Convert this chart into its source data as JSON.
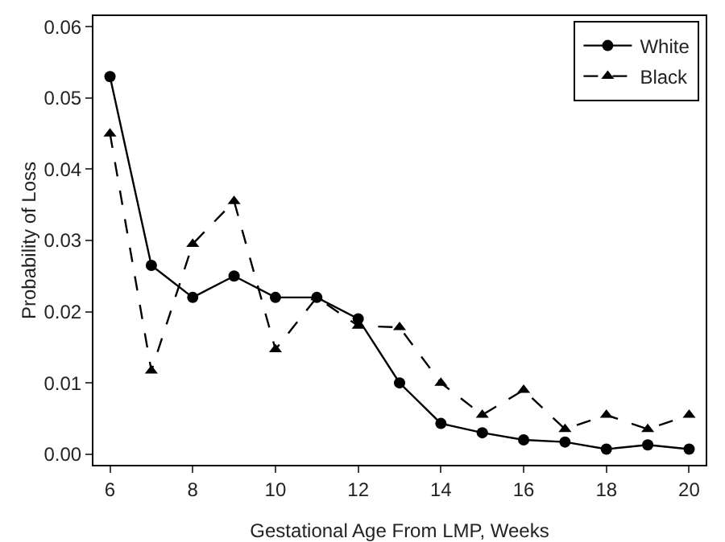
{
  "chart_data": {
    "type": "line",
    "xlabel": "Gestational Age From LMP, Weeks",
    "ylabel": "Probability of Loss",
    "x": [
      6,
      7,
      8,
      9,
      10,
      11,
      12,
      13,
      14,
      15,
      16,
      17,
      18,
      19,
      20
    ],
    "series": [
      {
        "name": "White",
        "color": "#000000",
        "marker": "circle",
        "line_style": "solid",
        "values": [
          0.053,
          0.0265,
          0.022,
          0.025,
          0.022,
          0.022,
          0.019,
          0.01,
          0.0043,
          0.003,
          0.002,
          0.0017,
          0.0007,
          0.0013,
          0.0007
        ]
      },
      {
        "name": "Black",
        "color": "#000000",
        "marker": "triangle",
        "line_style": "dashed",
        "values": [
          0.045,
          0.0117,
          0.0295,
          0.0355,
          0.0147,
          0.022,
          0.018,
          0.0178,
          0.01,
          0.0055,
          0.009,
          0.0035,
          0.0055,
          0.0035,
          0.0055
        ]
      }
    ],
    "xlim": [
      5.6,
      20.4
    ],
    "xticks": [
      6,
      8,
      10,
      12,
      14,
      16,
      18,
      20
    ],
    "ylim": [
      -0.0015,
      0.0615
    ],
    "yticks": [
      {
        "value": 0,
        "label": "0.00"
      },
      {
        "value": 0.01,
        "label": "0.01"
      },
      {
        "value": 0.02,
        "label": "0.02"
      },
      {
        "value": 0.03,
        "label": "0.03"
      },
      {
        "value": 0.04,
        "label": "0.04"
      },
      {
        "value": 0.05,
        "label": "0.05"
      },
      {
        "value": 0.06,
        "label": "0.06"
      }
    ],
    "grid": false,
    "legend": "top right"
  }
}
